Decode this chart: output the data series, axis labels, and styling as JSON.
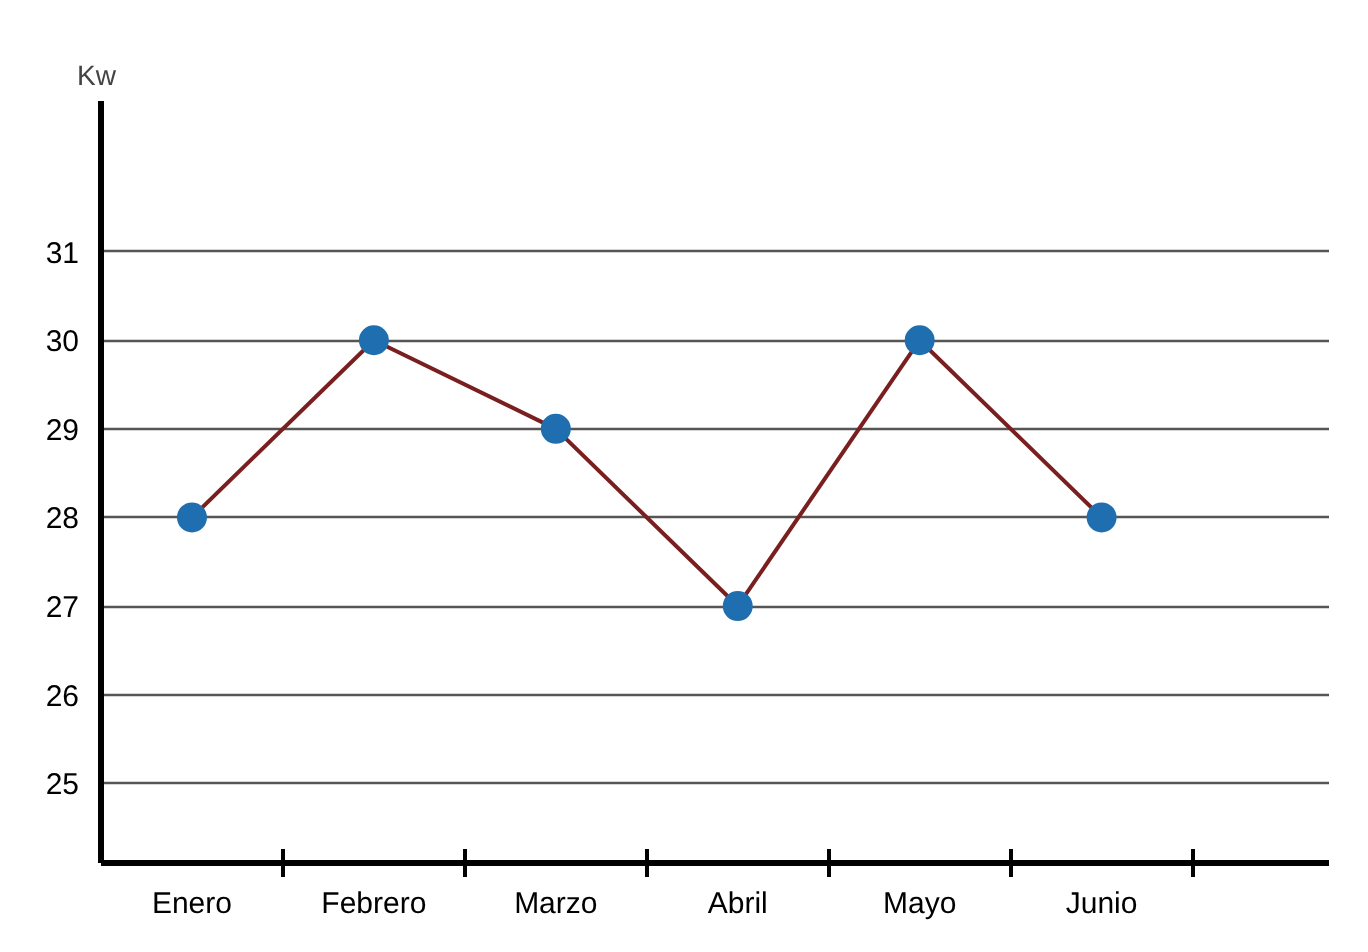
{
  "chart_data": {
    "type": "line",
    "ylabel": "Kw",
    "categories": [
      "Enero",
      "Febrero",
      "Marzo",
      "Abril",
      "Mayo",
      "Junio"
    ],
    "series": [
      {
        "color": "#7a1f1f",
        "colors": [
          "#1f6fb0",
          "#1f6fb0",
          "#1f6fb0",
          "#1f6fb0",
          "#1f6fb0",
          "#1f6fb0"
        ],
        "values": [
          28,
          30,
          29,
          27,
          30,
          28
        ]
      }
    ],
    "marker": "circle",
    "ylim": [
      24.1,
      32.7
    ],
    "yticks": [
      25,
      26,
      27,
      28,
      29,
      30,
      31
    ],
    "grid": "y"
  }
}
